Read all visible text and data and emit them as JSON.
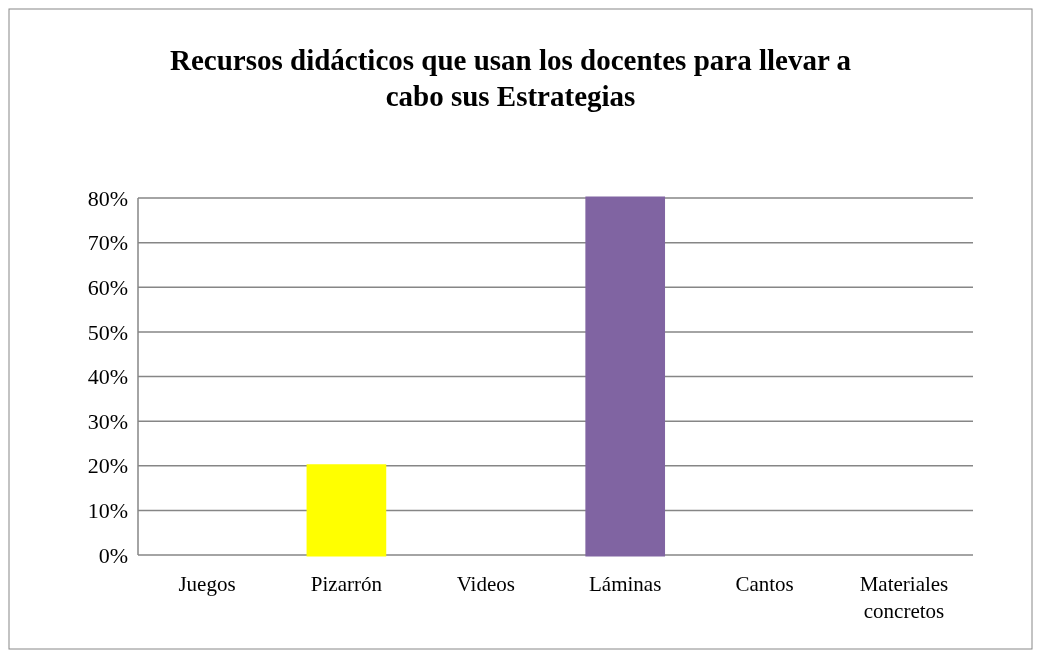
{
  "chart_data": {
    "type": "bar",
    "title": "Recursos didácticos que usan los docentes  para llevar a cabo sus Estrategias",
    "categories": [
      "Juegos",
      "Pizarrón",
      "Videos",
      "Láminas",
      "Cantos",
      "Materiales concretos"
    ],
    "values": [
      0,
      20,
      0,
      80,
      0,
      0
    ],
    "colors": [
      "#948a6c",
      "#ffff00",
      "#4f6228",
      "#8064a2",
      "#a5706d",
      "#376092"
    ],
    "ylim": [
      0,
      80
    ],
    "yticks": [
      {
        "value": 0,
        "label": "0%"
      },
      {
        "value": 10,
        "label": "10%"
      },
      {
        "value": 20,
        "label": "20%"
      },
      {
        "value": 30,
        "label": "30%"
      },
      {
        "value": 40,
        "label": "40%"
      },
      {
        "value": 50,
        "label": "50%"
      },
      {
        "value": 60,
        "label": "60%"
      },
      {
        "value": 70,
        "label": "70%"
      },
      {
        "value": 80,
        "label": "80%"
      }
    ],
    "grid": true
  }
}
